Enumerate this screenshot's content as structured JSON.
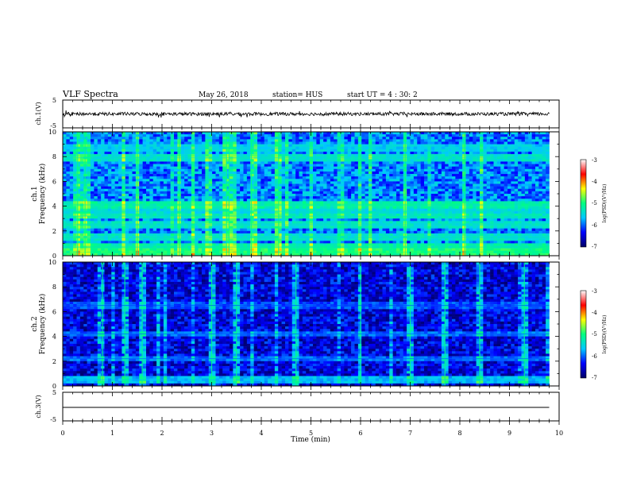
{
  "header": {
    "title": "VLF Spectra",
    "date": "May 26, 2018",
    "station": "station= HUS",
    "start": "start  UT =   4 : 30: 2"
  },
  "chart_data": [
    {
      "type": "line",
      "name": "ch1-waveform",
      "ylabel": "ch.1(V)",
      "ylim": [
        -5,
        5
      ],
      "yticks": [
        5,
        -5
      ],
      "x": [
        0,
        1,
        2,
        3,
        4,
        5,
        6,
        7,
        8,
        9,
        9.8
      ],
      "y": [
        0,
        0,
        0,
        0,
        0,
        0,
        0,
        0,
        0,
        0,
        0
      ],
      "noise_amplitude_V": 0.6
    },
    {
      "type": "heatmap",
      "name": "ch1-spectrogram",
      "ylabel": "ch.1\nFrequency (kHz)",
      "ylim": [
        0,
        10
      ],
      "yticks": [
        0,
        2,
        4,
        6,
        8,
        10
      ],
      "xlim": [
        0,
        10
      ],
      "data_end_min": 9.8,
      "colorbar": {
        "label": "log(PSD)(V²/Hz)",
        "range": [
          -7,
          -3
        ],
        "ticks": [
          -3,
          -4,
          -5,
          -6,
          -7
        ]
      },
      "background_logpsd": -5.9,
      "enhanced_bands_kHz": [
        {
          "f": 0.3,
          "logpsd": -5.0
        },
        {
          "f": 0.7,
          "logpsd": -5.2
        },
        {
          "f": 1.5,
          "logpsd": -5.4
        },
        {
          "f": 2.5,
          "logpsd": -5.4
        },
        {
          "f": 3.2,
          "logpsd": -5.3
        },
        {
          "f": 3.6,
          "logpsd": -5.5
        },
        {
          "f": 4.1,
          "logpsd": -5.2
        },
        {
          "f": 7.9,
          "logpsd": -5.4
        },
        {
          "f": 8.7,
          "logpsd": -5.6
        }
      ],
      "bright_times_min": [
        0.3,
        0.45,
        1.5,
        2.35,
        3.3,
        3.35,
        3.8,
        4.35,
        6.9,
        8.1
      ]
    },
    {
      "type": "heatmap",
      "name": "ch2-spectrogram",
      "ylabel": "ch.2\nFrequency (kHz)",
      "ylim": [
        0,
        10
      ],
      "yticks": [
        0,
        2,
        4,
        6,
        8,
        10
      ],
      "xlim": [
        0,
        10
      ],
      "data_end_min": 9.8,
      "colorbar": {
        "label": "log(PSD)(V²/Hz)",
        "range": [
          -7,
          -3
        ],
        "ticks": [
          -3,
          -4,
          -5,
          -6,
          -7
        ]
      },
      "background_logpsd": -6.5,
      "enhanced_bands_kHz": [
        {
          "f": 0.5,
          "logpsd": -5.7
        },
        {
          "f": 2.2,
          "logpsd": -6.0
        },
        {
          "f": 4.2,
          "logpsd": -6.0
        },
        {
          "f": 6.5,
          "logpsd": -6.1
        }
      ],
      "bright_times_min": [
        0.8,
        1.25,
        1.6,
        3.0,
        3.5,
        4.7,
        6.0,
        7.0,
        7.7,
        8.4,
        9.3
      ]
    },
    {
      "type": "line",
      "name": "ch3-waveform",
      "ylabel": "ch.3(V)",
      "ylim": [
        -5,
        5
      ],
      "yticks": [
        5,
        -5
      ],
      "x": [
        0,
        9.8
      ],
      "y": [
        0,
        0
      ]
    }
  ],
  "xaxis": {
    "label": "Time  (min)",
    "ticks": [
      "0",
      "1",
      "2",
      "3",
      "4",
      "5",
      "6",
      "7",
      "8",
      "9",
      "10"
    ]
  },
  "colors": {
    "colormap": [
      "#000066",
      "#0000ff",
      "#00c8ff",
      "#00ff80",
      "#ffff00",
      "#ff0000",
      "#ffffff"
    ]
  }
}
